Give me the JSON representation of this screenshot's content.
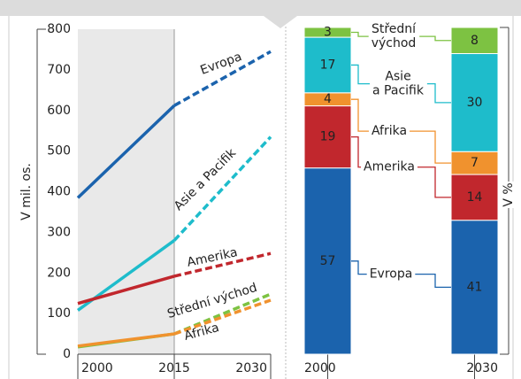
{
  "chart_data": [
    {
      "type": "line",
      "y_label": "V mil. os.",
      "x": [
        2000,
        2015,
        2030
      ],
      "xlim": [
        2000,
        2030
      ],
      "xticks": [
        2000,
        2015,
        2030
      ],
      "ylim": [
        0,
        800
      ],
      "yticks": [
        0,
        100,
        200,
        300,
        400,
        500,
        600,
        700,
        800
      ],
      "series": [
        {
          "name": "Evropa",
          "color": "#1b63ad",
          "values": [
            385,
            612,
            745
          ]
        },
        {
          "name": "Asie a Pacifik",
          "color": "#1ebccb",
          "values": [
            108,
            280,
            535
          ]
        },
        {
          "name": "Amerika",
          "color": "#c1272d",
          "values": [
            125,
            192,
            248
          ]
        },
        {
          "name": "Střední východ",
          "color": "#7dc242",
          "values": [
            18,
            50,
            148
          ]
        },
        {
          "name": "Afrika",
          "color": "#f0922e",
          "values": [
            20,
            50,
            133
          ]
        }
      ]
    },
    {
      "type": "stacked_bar",
      "y_label": "V %",
      "categories": [
        "2000",
        "2030"
      ],
      "ylim": [
        0,
        100
      ],
      "series": [
        {
          "name": "Evropa",
          "color": "#1b63ad",
          "values": [
            57,
            41
          ]
        },
        {
          "name": "Amerika",
          "color": "#c1272d",
          "values": [
            19,
            14
          ]
        },
        {
          "name": "Afrika",
          "color": "#f0922e",
          "values": [
            4,
            7
          ]
        },
        {
          "name": "Asie a Pacifik",
          "color": "#1ebccb",
          "values": [
            17,
            30
          ]
        },
        {
          "name": "Střední východ",
          "color": "#7dc242",
          "values": [
            3,
            8
          ]
        }
      ]
    }
  ]
}
